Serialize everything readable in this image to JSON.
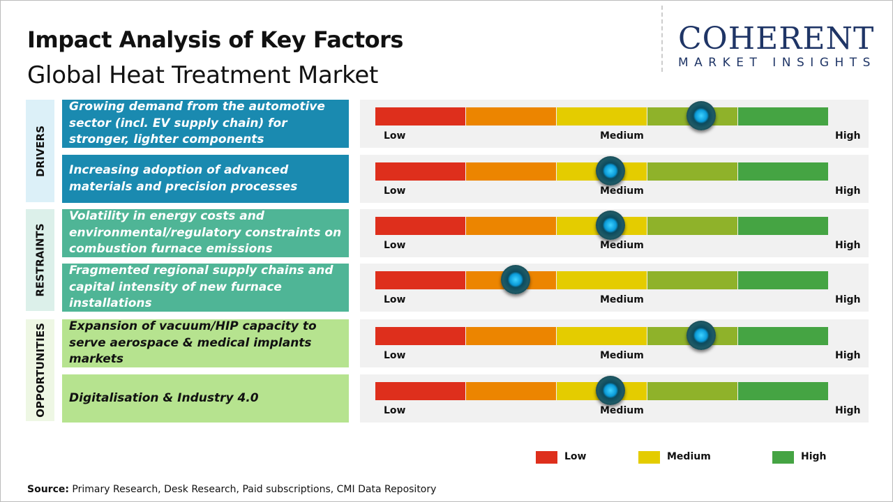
{
  "header": {
    "title": "Impact Analysis of Key Factors",
    "subtitle": "Global Heat Treatment Market"
  },
  "logo": {
    "line1": "COHERENT",
    "line2": "MARKET INSIGHTS"
  },
  "chart_data": {
    "type": "gauge",
    "scale_labels": [
      "Low",
      "Medium",
      "High"
    ],
    "segment_colors": [
      "#de2f1c",
      "#ec8500",
      "#e4cc00",
      "#8fb22a",
      "#45a443"
    ],
    "groups": [
      {
        "name": "DRIVERS",
        "color": "#1a8ab0",
        "light": "#dcf0f8",
        "text_color": "#ffffff",
        "items": [
          {
            "label": "Growing demand from the automotive sector (incl. EV supply chain) for stronger, lighter components",
            "impact": 0.72
          },
          {
            "label": "Increasing adoption of advanced materials and precision processes",
            "impact": 0.52
          }
        ]
      },
      {
        "name": "RESTRAINTS",
        "color": "#4fb596",
        "light": "#dcf0ea",
        "text_color": "#ffffff",
        "items": [
          {
            "label": "Volatility in energy costs and environmental/regulatory constraints on combustion furnace emissions",
            "impact": 0.52
          },
          {
            "label": "Fragmented regional supply chains and capital intensity of new furnace installations",
            "impact": 0.31
          }
        ]
      },
      {
        "name": "OPPORTUNITIES",
        "color": "#b6e38f",
        "light": "#eef7e4",
        "text_color": "#111111",
        "items": [
          {
            "label": "Expansion of vacuum/HIP capacity to serve aerospace & medical implants markets",
            "impact": 0.72
          },
          {
            "label": "Digitalisation & Industry 4.0",
            "impact": 0.52
          }
        ]
      }
    ],
    "legend": [
      {
        "label": "Low",
        "color": "#de2f1c"
      },
      {
        "label": "Medium",
        "color": "#e4cc00"
      },
      {
        "label": "High",
        "color": "#45a443"
      }
    ]
  },
  "source": {
    "label": "Source:",
    "text": " Primary Research, Desk Research, Paid subscriptions, CMI Data Repository"
  }
}
